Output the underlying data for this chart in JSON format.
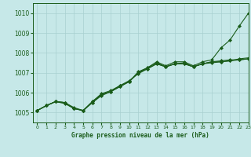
{
  "xlabel": "Graphe pression niveau de la mer (hPa)",
  "ylim": [
    1004.5,
    1010.5
  ],
  "xlim": [
    -0.5,
    23
  ],
  "yticks": [
    1005,
    1006,
    1007,
    1008,
    1009,
    1010
  ],
  "xticks": [
    0,
    1,
    2,
    3,
    4,
    5,
    6,
    7,
    8,
    9,
    10,
    11,
    12,
    13,
    14,
    15,
    16,
    17,
    18,
    19,
    20,
    21,
    22,
    23
  ],
  "background_color": "#c6e8e8",
  "grid_color": "#a8d0d0",
  "line_color": "#1a5c1a",
  "series": [
    [
      1005.1,
      1005.35,
      1005.55,
      1005.5,
      1005.25,
      1005.1,
      1005.55,
      1005.9,
      1006.05,
      1006.35,
      1006.55,
      1007.05,
      1007.25,
      1007.55,
      1007.35,
      1007.55,
      1007.55,
      1007.35,
      1007.55,
      1007.65,
      1008.25,
      1008.65,
      1009.35,
      1010.0
    ],
    [
      1005.1,
      1005.35,
      1005.55,
      1005.45,
      1005.2,
      1005.1,
      1005.55,
      1005.95,
      1006.1,
      1006.35,
      1006.6,
      1006.95,
      1007.2,
      1007.45,
      1007.3,
      1007.45,
      1007.45,
      1007.3,
      1007.45,
      1007.55,
      1007.55,
      1007.6,
      1007.65,
      1007.7
    ],
    [
      1005.1,
      1005.35,
      1005.55,
      1005.5,
      1005.2,
      1005.1,
      1005.5,
      1005.85,
      1006.05,
      1006.3,
      1006.55,
      1007.0,
      1007.25,
      1007.5,
      1007.3,
      1007.45,
      1007.5,
      1007.3,
      1007.45,
      1007.55,
      1007.6,
      1007.65,
      1007.65,
      1007.7
    ],
    [
      1005.1,
      1005.35,
      1005.55,
      1005.5,
      1005.2,
      1005.1,
      1005.5,
      1005.9,
      1006.05,
      1006.3,
      1006.55,
      1007.0,
      1007.2,
      1007.45,
      1007.3,
      1007.45,
      1007.45,
      1007.3,
      1007.45,
      1007.5,
      1007.55,
      1007.6,
      1007.7,
      1007.75
    ]
  ],
  "marker": "D",
  "marker_size": 2.0,
  "linewidth": 0.8
}
